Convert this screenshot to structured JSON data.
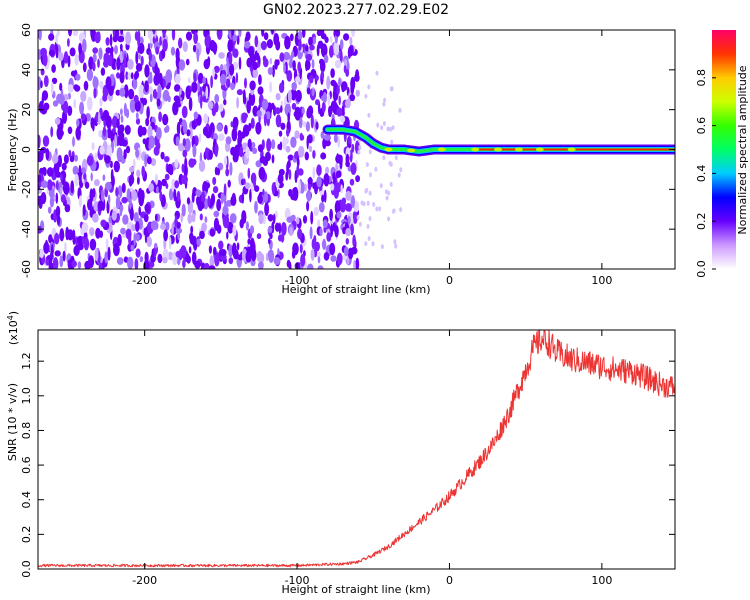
{
  "title": "GN02.2023.277.02.29.E02",
  "chart_data": [
    {
      "type": "heatmap",
      "xlabel": "Height of straight line (km)",
      "ylabel": "Frequency (Hz)",
      "xlim": [
        -270,
        148
      ],
      "ylim": [
        -60,
        60
      ],
      "x_ticks": [
        -200,
        -100,
        0,
        100
      ],
      "y_ticks": [
        -60,
        -40,
        -20,
        0,
        20,
        40,
        60
      ],
      "noise_region_x": [
        -270,
        -60
      ],
      "signal_track": {
        "x": [
          -80,
          -70,
          -62,
          -55,
          -50,
          -45,
          -40,
          -30,
          -20,
          -10,
          0,
          10,
          20,
          40,
          60,
          80,
          100,
          120,
          148
        ],
        "y": [
          10,
          10,
          9,
          6,
          3,
          1,
          0,
          0,
          -1,
          0,
          0,
          0,
          0,
          0,
          0,
          0,
          0,
          0,
          0
        ]
      },
      "colorbar": {
        "label": "Normalized spectral amplitude",
        "range": [
          0.0,
          1.0
        ],
        "ticks": [
          "0.0",
          "0.2",
          "0.4",
          "0.6",
          "0.8"
        ],
        "tick_values": [
          0.0,
          0.2,
          0.4,
          0.6,
          0.8
        ],
        "colors": [
          "#ffffff",
          "#cc99ff",
          "#6600ff",
          "#0000ff",
          "#00ccff",
          "#00ff66",
          "#33ff00",
          "#ccff00",
          "#ffcc00",
          "#ff3300",
          "#ff0066"
        ]
      }
    },
    {
      "type": "line",
      "xlabel": "Height of straight line (km)",
      "ylabel": "SNR (10 * v/v)",
      "y_multiplier": "(x10",
      "y_multiplier_exp": "4",
      "y_multiplier_close": ")",
      "xlim": [
        -270,
        148
      ],
      "ylim": [
        0,
        1.38
      ],
      "x_ticks": [
        -200,
        -100,
        0,
        100
      ],
      "y_ticks": [
        "0.0",
        "0.2",
        "0.4",
        "0.6",
        "0.8",
        "1.0",
        "1.2"
      ],
      "y_tick_values": [
        0.0,
        0.2,
        0.4,
        0.6,
        0.8,
        1.0,
        1.2
      ],
      "color": "#ee3333",
      "series": [
        {
          "x": [
            -270,
            -200,
            -150,
            -100,
            -70,
            -60,
            -50,
            -40,
            -30,
            -20,
            -10,
            0,
            10,
            20,
            30,
            40,
            50,
            55,
            60,
            65,
            70,
            80,
            90,
            100,
            110,
            120,
            130,
            140,
            148
          ],
          "y": [
            0.02,
            0.02,
            0.02,
            0.02,
            0.03,
            0.04,
            0.08,
            0.13,
            0.2,
            0.27,
            0.34,
            0.42,
            0.52,
            0.62,
            0.74,
            0.92,
            1.15,
            1.27,
            1.33,
            1.31,
            1.25,
            1.21,
            1.19,
            1.17,
            1.15,
            1.14,
            1.1,
            1.06,
            1.05
          ]
        }
      ]
    }
  ]
}
